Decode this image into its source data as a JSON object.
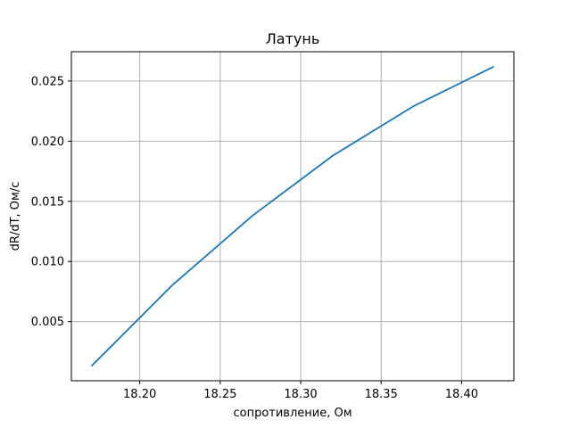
{
  "chart_data": {
    "type": "line",
    "title": "Латунь",
    "xlabel": "сопротивление, Ом",
    "ylabel": "dR/dT, Ом/с",
    "xlim": [
      18.1575,
      18.4325
    ],
    "ylim": [
      8e-05,
      0.02744
    ],
    "grid": true,
    "x_ticks": [
      {
        "value": 18.2,
        "label": "18.20"
      },
      {
        "value": 18.25,
        "label": "18.25"
      },
      {
        "value": 18.3,
        "label": "18.30"
      },
      {
        "value": 18.35,
        "label": "18.35"
      },
      {
        "value": 18.4,
        "label": "18.40"
      }
    ],
    "y_ticks": [
      {
        "value": 0.005,
        "label": "0.005"
      },
      {
        "value": 0.01,
        "label": "0.010"
      },
      {
        "value": 0.015,
        "label": "0.015"
      },
      {
        "value": 0.02,
        "label": "0.020"
      },
      {
        "value": 0.025,
        "label": "0.025"
      }
    ],
    "series": [
      {
        "color": "#1f77b4",
        "x": [
          18.17,
          18.22,
          18.27,
          18.32,
          18.37,
          18.42
        ],
        "y": [
          0.0013,
          0.008,
          0.0138,
          0.0188,
          0.0229,
          0.0262
        ]
      }
    ]
  }
}
